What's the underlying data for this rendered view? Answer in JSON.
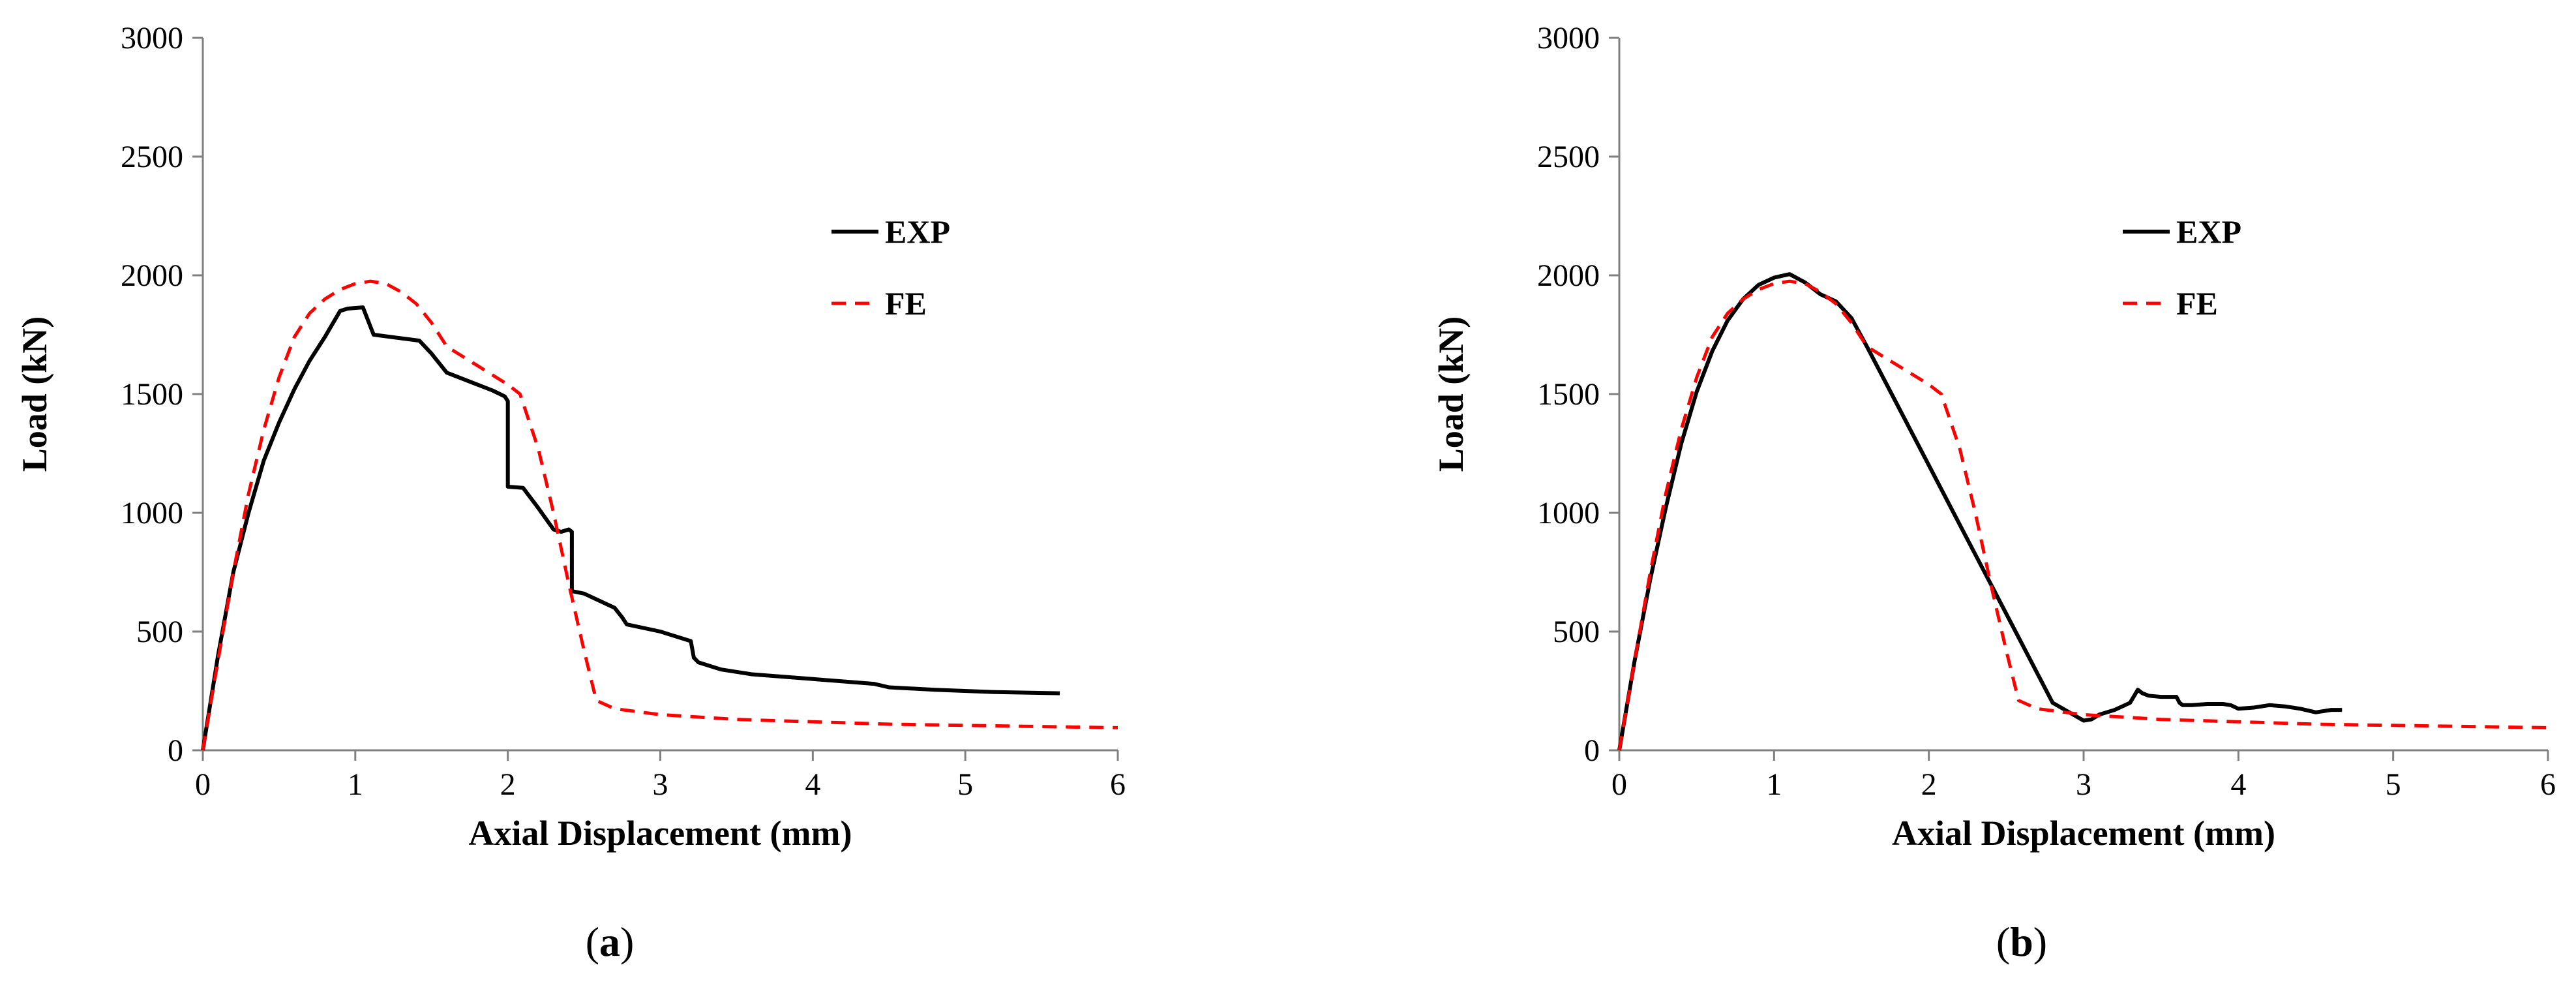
{
  "chart_data": [
    {
      "type": "line",
      "caption_letter": "a",
      "xlabel": "Axial Displacement (mm)",
      "ylabel": "Load (kN)",
      "xlim": [
        0,
        6
      ],
      "ylim": [
        0,
        3000
      ],
      "xticks": [
        0,
        1,
        2,
        3,
        4,
        5,
        6
      ],
      "yticks": [
        0,
        500,
        1000,
        1500,
        2000,
        2500,
        3000
      ],
      "legend_position": "right",
      "series": [
        {
          "name": "EXP",
          "color": "#000000",
          "style": "solid",
          "x": [
            0,
            0.1,
            0.2,
            0.3,
            0.4,
            0.5,
            0.6,
            0.7,
            0.8,
            0.9,
            0.95,
            1.05,
            1.12,
            1.3,
            1.42,
            1.5,
            1.6,
            1.8,
            1.9,
            1.98,
            2.0,
            2.0,
            2.1,
            2.2,
            2.3,
            2.35,
            2.4,
            2.42,
            2.42,
            2.5,
            2.7,
            2.75,
            2.78,
            3.0,
            3.2,
            3.22,
            3.25,
            3.4,
            3.6,
            4.0,
            4.4,
            4.5,
            4.8,
            5.2,
            5.62
          ],
          "y": [
            0,
            400,
            750,
            1000,
            1220,
            1380,
            1520,
            1640,
            1740,
            1850,
            1860,
            1865,
            1750,
            1735,
            1725,
            1670,
            1590,
            1540,
            1515,
            1490,
            1470,
            1110,
            1105,
            1020,
            930,
            920,
            930,
            920,
            670,
            660,
            600,
            560,
            530,
            500,
            460,
            390,
            370,
            340,
            320,
            300,
            280,
            265,
            255,
            245,
            240
          ]
        },
        {
          "name": "FE",
          "color": "#ff0000",
          "style": "dashed",
          "x": [
            0,
            0.1,
            0.2,
            0.3,
            0.4,
            0.5,
            0.6,
            0.7,
            0.8,
            0.9,
            1.0,
            1.1,
            1.2,
            1.3,
            1.4,
            1.5,
            1.6,
            1.8,
            2.0,
            2.08,
            2.2,
            2.3,
            2.4,
            2.5,
            2.58,
            2.7,
            3.0,
            3.5,
            4.0,
            4.5,
            5.0,
            5.5,
            6.0
          ],
          "y": [
            0,
            380,
            750,
            1080,
            1350,
            1570,
            1740,
            1840,
            1900,
            1940,
            1965,
            1975,
            1965,
            1930,
            1880,
            1800,
            1700,
            1620,
            1540,
            1500,
            1270,
            1000,
            700,
            420,
            210,
            175,
            150,
            130,
            120,
            110,
            105,
            100,
            95
          ]
        }
      ]
    },
    {
      "type": "line",
      "caption_letter": "b",
      "xlabel": "Axial Displacement (mm)",
      "ylabel": "Load (kN)",
      "xlim": [
        0,
        6
      ],
      "ylim": [
        0,
        3000
      ],
      "xticks": [
        0,
        1,
        2,
        3,
        4,
        5,
        6
      ],
      "yticks": [
        0,
        500,
        1000,
        1500,
        2000,
        2500,
        3000
      ],
      "legend_position": "right",
      "series": [
        {
          "name": "EXP",
          "color": "#000000",
          "style": "solid",
          "x": [
            0,
            0.1,
            0.2,
            0.3,
            0.4,
            0.5,
            0.6,
            0.7,
            0.8,
            0.9,
            1.0,
            1.1,
            1.2,
            1.3,
            1.4,
            1.5,
            1.6,
            1.8,
            2.0,
            2.2,
            2.4,
            2.6,
            2.8,
            3.0,
            3.05,
            3.1,
            3.2,
            3.3,
            3.35,
            3.38,
            3.42,
            3.5,
            3.6,
            3.62,
            3.64,
            3.7,
            3.8,
            3.9,
            3.95,
            4.0,
            4.1,
            4.2,
            4.3,
            4.4,
            4.5,
            4.6,
            4.67
          ],
          "y": [
            0,
            380,
            720,
            1020,
            1290,
            1510,
            1680,
            1810,
            1900,
            1960,
            1990,
            2005,
            1970,
            1920,
            1890,
            1820,
            1700,
            1450,
            1200,
            950,
            700,
            450,
            200,
            125,
            130,
            150,
            170,
            200,
            255,
            240,
            230,
            225,
            225,
            200,
            190,
            190,
            195,
            195,
            190,
            175,
            180,
            190,
            185,
            175,
            160,
            170,
            170
          ]
        },
        {
          "name": "FE",
          "color": "#ff0000",
          "style": "dashed",
          "x": [
            0,
            0.1,
            0.2,
            0.3,
            0.4,
            0.5,
            0.6,
            0.7,
            0.8,
            0.9,
            1.0,
            1.1,
            1.2,
            1.3,
            1.4,
            1.5,
            1.6,
            1.8,
            2.0,
            2.08,
            2.2,
            2.3,
            2.4,
            2.5,
            2.58,
            2.7,
            3.0,
            3.5,
            4.0,
            4.5,
            5.0,
            5.5,
            6.0
          ],
          "y": [
            0,
            380,
            750,
            1080,
            1350,
            1570,
            1740,
            1840,
            1900,
            1940,
            1965,
            1975,
            1965,
            1930,
            1880,
            1800,
            1700,
            1620,
            1540,
            1500,
            1270,
            1000,
            700,
            420,
            210,
            175,
            150,
            130,
            120,
            110,
            105,
            100,
            95
          ]
        }
      ]
    }
  ]
}
